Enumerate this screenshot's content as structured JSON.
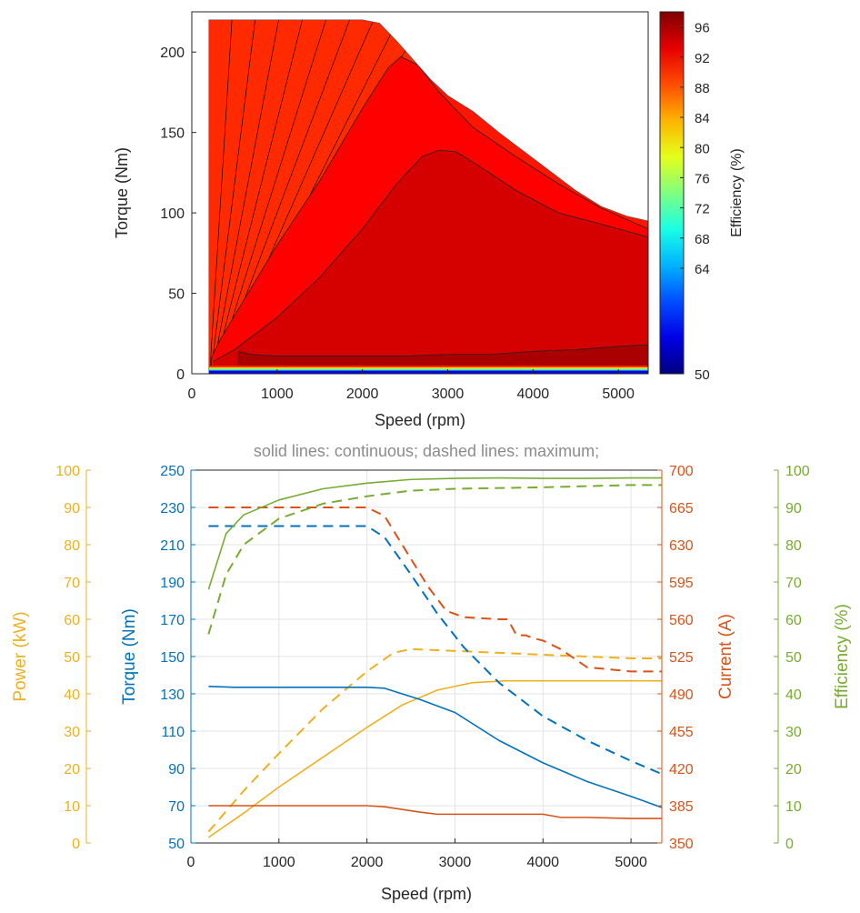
{
  "chart_data": [
    {
      "type": "contour",
      "title": "",
      "xlabel": "Speed (rpm)",
      "ylabel": "Torque (Nm)",
      "xlim": [
        0,
        5350
      ],
      "ylim": [
        0,
        225
      ],
      "xticks": [
        0,
        1000,
        2000,
        3000,
        4000,
        5000
      ],
      "yticks": [
        0,
        50,
        100,
        150,
        200
      ],
      "colorbar": {
        "label": "Efficiency (%)",
        "range": [
          50,
          98
        ],
        "ticks": [
          50,
          64,
          68,
          72,
          76,
          80,
          84,
          88,
          92,
          96
        ],
        "colormap": "jet"
      },
      "max_torque_envelope": {
        "x": [
          200,
          2000,
          2200,
          2400,
          2600,
          2800,
          3000,
          3300,
          3600,
          3900,
          4200,
          4500,
          4800,
          5100,
          5350
        ],
        "y": [
          220,
          220,
          218,
          207,
          195,
          183,
          173,
          163,
          150,
          138,
          126,
          114,
          104,
          98,
          95
        ]
      },
      "contour_levels": [
        {
          "efficiency": 92,
          "x": [
            230,
            320,
            600,
            1000,
            1500,
            2000,
            2300,
            2450,
            2650,
            2900,
            3300,
            3800,
            4300,
            4800,
            5350
          ],
          "y": [
            10,
            20,
            45,
            80,
            120,
            165,
            190,
            197,
            192,
            175,
            153,
            135,
            118,
            103,
            90
          ]
        },
        {
          "efficiency": 94,
          "x": [
            260,
            500,
            1000,
            1500,
            2000,
            2400,
            2700,
            2900,
            3100,
            3400,
            3800,
            4300,
            4800,
            5350
          ],
          "y": [
            8,
            15,
            35,
            60,
            90,
            118,
            135,
            139,
            138,
            128,
            114,
            100,
            93,
            85
          ]
        },
        {
          "efficiency": 96,
          "x": [
            540,
            700,
            1000,
            1500,
            2000,
            2500,
            3000,
            3500,
            4000,
            4500,
            5000,
            5350
          ],
          "y": [
            14,
            12,
            11,
            11,
            11,
            11,
            12,
            12,
            14,
            15,
            17,
            18
          ]
        }
      ]
    },
    {
      "type": "line",
      "title": "solid lines: continuous; dashed lines: maximum;",
      "xlabel": "Speed (rpm)",
      "xlim": [
        0,
        5350
      ],
      "xticks": [
        0,
        1000,
        2000,
        3000,
        4000,
        5000
      ],
      "grid": true,
      "axes": [
        {
          "id": "power",
          "label": "Power (kW)",
          "side": "left-outer",
          "range": [
            0,
            100
          ],
          "ticks": [
            0,
            10,
            20,
            30,
            40,
            50,
            60,
            70,
            80,
            90,
            100
          ],
          "color": "#EDB120"
        },
        {
          "id": "torque",
          "label": "Torque (Nm)",
          "side": "left",
          "range": [
            50,
            250
          ],
          "ticks": [
            50,
            70,
            90,
            110,
            130,
            150,
            170,
            190,
            210,
            230,
            250
          ],
          "color": "#0072BD"
        },
        {
          "id": "current",
          "label": "Current (A)",
          "side": "right",
          "range": [
            350,
            700
          ],
          "ticks": [
            350,
            385,
            420,
            455,
            490,
            525,
            560,
            595,
            630,
            665,
            700
          ],
          "color": "#D95319"
        },
        {
          "id": "efficiency",
          "label": "Efficiency (%)",
          "side": "right-outer",
          "range": [
            0,
            100
          ],
          "ticks": [
            0,
            10,
            20,
            30,
            40,
            50,
            60,
            70,
            80,
            90,
            100
          ],
          "color": "#77AC30"
        }
      ],
      "series": [
        {
          "axis": "power",
          "style": "solid",
          "color": "#EDB120",
          "x": [
            200,
            600,
            1000,
            1500,
            2000,
            2400,
            2800,
            3200,
            3600,
            4000,
            4500,
            5000,
            5350
          ],
          "y": [
            1.5,
            8,
            15,
            23,
            31,
            37,
            41,
            43,
            43.5,
            43.5,
            43.5,
            43.5,
            43.5
          ]
        },
        {
          "axis": "power",
          "style": "dashed",
          "color": "#EDB120",
          "x": [
            200,
            600,
            1000,
            1500,
            2000,
            2300,
            2500,
            3000,
            3500,
            4000,
            4500,
            5000,
            5350
          ],
          "y": [
            3,
            14,
            24,
            36,
            46,
            51,
            52,
            51.5,
            51,
            50.5,
            50,
            49.5,
            49.5
          ]
        },
        {
          "axis": "torque",
          "style": "solid",
          "color": "#0072BD",
          "x": [
            200,
            500,
            1000,
            1500,
            2000,
            2200,
            2600,
            3000,
            3500,
            4000,
            4500,
            5000,
            5350
          ],
          "y": [
            134,
            133.5,
            133.5,
            133.5,
            133.5,
            133,
            127,
            120,
            105,
            93,
            83,
            75,
            69
          ]
        },
        {
          "axis": "torque",
          "style": "dashed",
          "color": "#0072BD",
          "x": [
            200,
            500,
            1000,
            1500,
            2000,
            2200,
            2500,
            2800,
            3100,
            3500,
            4000,
            4500,
            5000,
            5350
          ],
          "y": [
            220,
            220,
            220,
            220,
            220,
            214,
            194,
            173,
            155,
            136,
            118,
            105,
            94,
            87
          ]
        },
        {
          "axis": "current",
          "style": "solid",
          "color": "#D95319",
          "x": [
            200,
            1000,
            2000,
            2200,
            2600,
            2800,
            3500,
            4000,
            4200,
            4500,
            5000,
            5350
          ],
          "y": [
            385,
            385,
            385,
            384,
            379,
            377,
            377,
            377,
            374,
            374,
            373,
            373
          ]
        },
        {
          "axis": "current",
          "style": "dashed",
          "color": "#D95319",
          "x": [
            200,
            1000,
            2000,
            2200,
            2400,
            2700,
            2900,
            3100,
            3500,
            3600,
            3700,
            3800,
            3900,
            4000,
            4200,
            4500,
            5000,
            5350
          ],
          "y": [
            665,
            665,
            665,
            657,
            630,
            590,
            568,
            562,
            560,
            560,
            545,
            545,
            542,
            540,
            532,
            515,
            511,
            511
          ]
        },
        {
          "axis": "efficiency",
          "style": "solid",
          "color": "#77AC30",
          "x": [
            200,
            400,
            600,
            1000,
            1500,
            2000,
            2500,
            3000,
            3500,
            4000,
            4500,
            5000,
            5350
          ],
          "y": [
            68,
            83,
            88,
            92,
            95,
            96.5,
            97.5,
            97.8,
            97.9,
            97.8,
            97.8,
            97.9,
            97.9
          ]
        },
        {
          "axis": "efficiency",
          "style": "dashed",
          "color": "#77AC30",
          "x": [
            200,
            400,
            600,
            1000,
            1500,
            2000,
            2500,
            3000,
            3500,
            4000,
            4500,
            5000,
            5350
          ],
          "y": [
            56,
            72,
            80,
            87,
            91,
            93,
            94.5,
            95,
            95.2,
            95.4,
            95.7,
            96,
            96
          ]
        }
      ]
    }
  ]
}
